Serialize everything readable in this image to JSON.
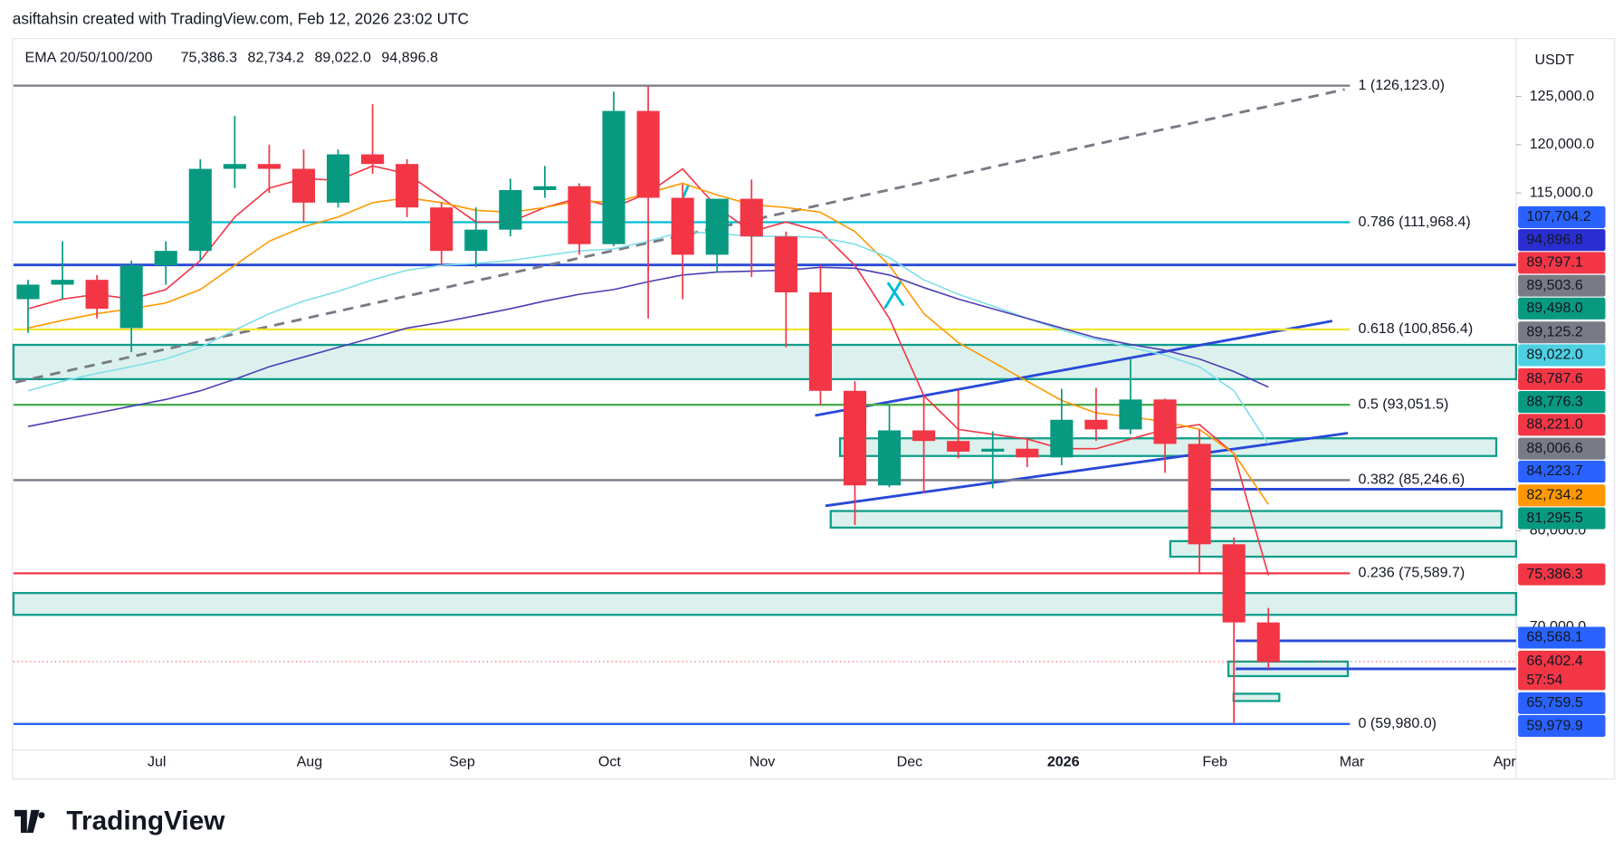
{
  "header": "asiftahsin created with TradingView.com, Feb 12, 2026 23:02 UTC",
  "logo": "TradingView",
  "chart_data": {
    "type": "candlestick",
    "indicator": {
      "name": "EMA 20/50/100/200",
      "values": [
        {
          "label": "75,386.3",
          "color": "#f23645"
        },
        {
          "label": "82,734.2",
          "color": "#ff9800"
        },
        {
          "label": "89,022.0",
          "color": "#00bcd4"
        },
        {
          "label": "94,896.8",
          "color": "#2a2ed0"
        }
      ]
    },
    "currency": "USDT",
    "x_labels": [
      "Jul",
      "Aug",
      "Sep",
      "Oct",
      "Nov",
      "Dec",
      "2026",
      "Feb",
      "Mar",
      "Apr"
    ],
    "ylim": [
      57300,
      131000
    ],
    "yticks": [
      {
        "value": 125000,
        "label": "125,000.0"
      },
      {
        "value": 120000,
        "label": "120,000.0"
      },
      {
        "value": 115000,
        "label": "115,000.0"
      },
      {
        "value": 80000,
        "label": "80,000.0"
      },
      {
        "value": 70000,
        "label": "70,000.0"
      }
    ],
    "up_color": "#089981",
    "down_color": "#f23645",
    "open": [
      104000,
      105500,
      106000,
      101000,
      107500,
      109000,
      117500,
      118000,
      117500,
      114000,
      119000,
      118000,
      113500,
      109000,
      111200,
      115300,
      115700,
      109700,
      123500,
      114500,
      108600,
      114400,
      110500,
      104700,
      94500,
      84700,
      90400,
      89300,
      88200,
      88500,
      87600,
      91500,
      90500,
      93600,
      89000,
      78600,
      70500
    ],
    "high": [
      106000,
      110000,
      106500,
      108000,
      110000,
      118500,
      123000,
      120000,
      119500,
      119500,
      124200,
      118500,
      114000,
      113500,
      116500,
      117800,
      116000,
      125500,
      126100,
      115900,
      114000,
      116400,
      111000,
      107500,
      95500,
      93000,
      94000,
      94600,
      90300,
      89500,
      94700,
      94800,
      97900,
      93700,
      90500,
      79300,
      72000
    ],
    "low": [
      100500,
      104000,
      102000,
      98500,
      105500,
      108000,
      115500,
      115000,
      112000,
      113500,
      117000,
      112500,
      107500,
      107300,
      110500,
      114500,
      108600,
      109500,
      102000,
      104000,
      106800,
      106300,
      99000,
      93000,
      80600,
      84500,
      83900,
      87500,
      84400,
      86600,
      86800,
      89300,
      90000,
      86000,
      75500,
      59980,
      65700
    ],
    "close": [
      105500,
      106000,
      103000,
      107500,
      109000,
      117500,
      118000,
      117500,
      114000,
      119000,
      118000,
      113500,
      109000,
      111200,
      115300,
      115700,
      109700,
      123500,
      114500,
      108600,
      114400,
      110500,
      104700,
      94500,
      84700,
      90400,
      89300,
      88200,
      88500,
      87600,
      91500,
      90500,
      93600,
      89000,
      78600,
      70500,
      66400
    ],
    "series": [
      {
        "name": "EMA 20",
        "color": "#f23645",
        "values": [
          103000,
          104000,
          104500,
          104000,
          105000,
          108000,
          112500,
          115500,
          116500,
          116300,
          117800,
          117000,
          114500,
          112000,
          112000,
          113500,
          114500,
          113500,
          115000,
          117500,
          113500,
          111000,
          112000,
          111000,
          107500,
          102000,
          94000,
          90500,
          90000,
          89500,
          88500,
          88500,
          89500,
          90500,
          91000,
          88000,
          75386.3
        ]
      },
      {
        "name": "EMA 50",
        "color": "#ff9800",
        "values": [
          101000,
          101800,
          102500,
          103000,
          103600,
          105000,
          107500,
          110000,
          111500,
          112500,
          114000,
          114500,
          114000,
          113200,
          113000,
          113500,
          114200,
          114000,
          115000,
          116000,
          114800,
          113800,
          113500,
          113000,
          111000,
          107500,
          102500,
          99500,
          97500,
          95500,
          93500,
          92200,
          91800,
          91300,
          90500,
          88000,
          82734.2
        ]
      },
      {
        "name": "EMA 100",
        "color": "#80deea",
        "values": [
          94500,
          95500,
          96300,
          97000,
          97800,
          99000,
          100800,
          102500,
          103800,
          104800,
          106000,
          107000,
          107500,
          107700,
          108000,
          108500,
          109000,
          109200,
          110000,
          111000,
          110800,
          110500,
          110500,
          110400,
          109700,
          108300,
          106000,
          104500,
          103300,
          102000,
          100800,
          99800,
          99000,
          98200,
          97000,
          94500,
          89022
        ]
      },
      {
        "name": "EMA 200",
        "color": "#4a3fb5",
        "values": [
          90800,
          91500,
          92200,
          92900,
          93600,
          94500,
          95700,
          97000,
          98000,
          99000,
          100000,
          101000,
          101600,
          102300,
          103000,
          103800,
          104500,
          105000,
          105800,
          106500,
          106800,
          106900,
          107000,
          107300,
          107200,
          106500,
          105200,
          104000,
          103000,
          102000,
          101000,
          100000,
          99300,
          98700,
          97800,
          96500,
          94896.8
        ]
      }
    ],
    "fib_levels": [
      {
        "value": 126123,
        "label": "1 (126,123.0)",
        "color": "#787b86"
      },
      {
        "value": 111968.4,
        "label": "0.786 (111,968.4)",
        "color": "#00bcd4"
      },
      {
        "value": 100856.4,
        "label": "0.618 (100,856.4)",
        "color": "#f5e52c"
      },
      {
        "value": 93051.5,
        "label": "0.5 (93,051.5)",
        "color": "#4caf50"
      },
      {
        "value": 85246.6,
        "label": "0.382 (85,246.6)",
        "color": "#787b86"
      },
      {
        "value": 75589.7,
        "label": "0.236 (75,589.7)",
        "color": "#f23645"
      },
      {
        "value": 59980,
        "label": "0 (59,980.0)",
        "color": "#2962ff"
      }
    ],
    "price_labels": [
      {
        "label": "107,704.2",
        "color": "#2962ff"
      },
      {
        "label": "94,896.8",
        "color": "#2a2ed0"
      },
      {
        "label": "89,797.1",
        "color": "#f23645"
      },
      {
        "label": "89,503.6",
        "color": "#787b86"
      },
      {
        "label": "89,498.0",
        "color": "#089981"
      },
      {
        "label": "89,125.2",
        "color": "#787b86"
      },
      {
        "label": "89,022.0",
        "color": "#4dd0e1"
      },
      {
        "label": "88,787.6",
        "color": "#f23645"
      },
      {
        "label": "88,776.3",
        "color": "#089981"
      },
      {
        "label": "88,221.0",
        "color": "#f23645"
      },
      {
        "label": "88,006.6",
        "color": "#787b86"
      },
      {
        "label": "84,223.7",
        "color": "#2962ff"
      },
      {
        "label": "82,734.2",
        "color": "#ff9800"
      },
      {
        "label": "81,295.5",
        "color": "#089981"
      },
      {
        "label": "75,386.3",
        "color": "#f23645"
      },
      {
        "label": "68,568.1",
        "color": "#2962ff"
      },
      {
        "label": "66,402.4",
        "color": "#f23645"
      },
      {
        "label": "65,759.5",
        "color": "#2962ff"
      },
      {
        "label": "59,979.9",
        "color": "#2962ff"
      }
    ],
    "countdown": "57:54"
  }
}
